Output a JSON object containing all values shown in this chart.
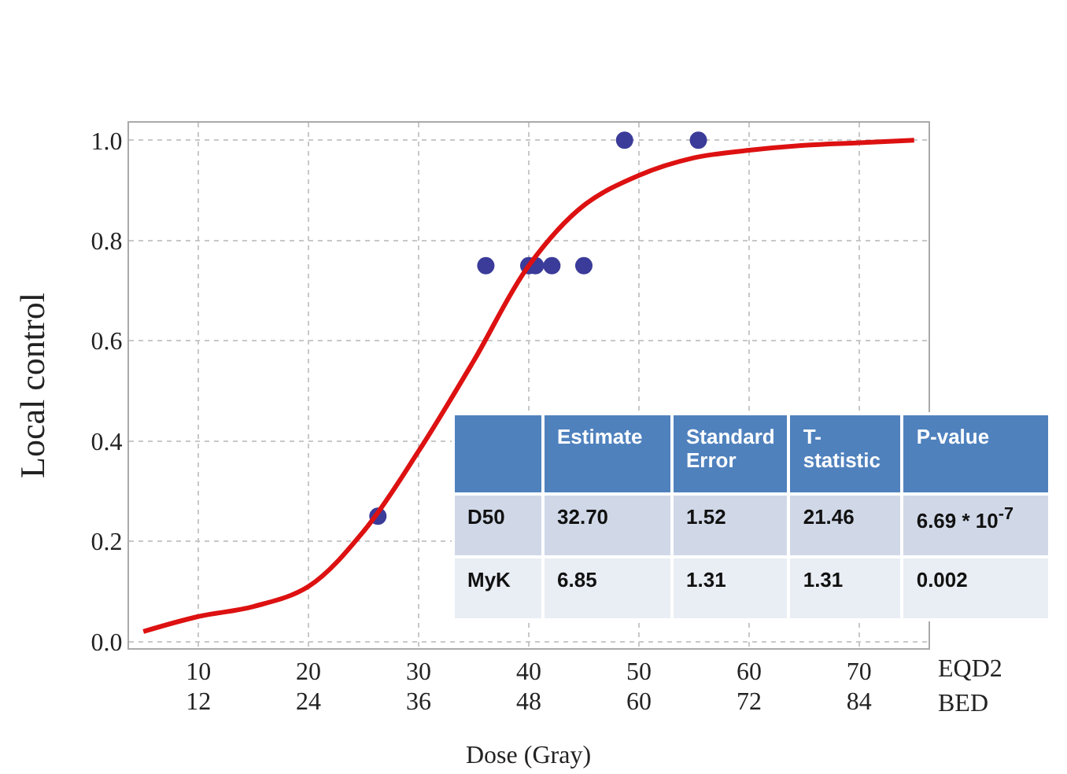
{
  "chart_data": [
    {
      "type": "scatter",
      "xlabel": "Dose (Gray)",
      "ylabel": "Local control",
      "annotations": [
        "EQD2",
        "BED"
      ],
      "xlim": [
        3.7,
        76.3
      ],
      "xticks": [
        10,
        20,
        30,
        40,
        50,
        60,
        70
      ],
      "x2lim": [
        4.44,
        91.56
      ],
      "x2ticks": [
        12,
        24,
        36,
        48,
        60,
        72,
        84
      ],
      "ylim": [
        -0.013,
        1.035
      ],
      "yticks": [
        {
          "value": 0,
          "label": "0.0"
        },
        0.2,
        0.4,
        0.6,
        0.8,
        {
          "value": 1,
          "label": "1.0"
        }
      ],
      "grid": true,
      "marker": "circle",
      "series": [
        {
          "type": "scatter",
          "color": "#3b3b9a",
          "x": [
            26.3,
            36.1,
            40.0,
            40.6,
            42.1,
            45.0,
            48.7,
            55.4
          ],
          "values": [
            0.25,
            0.75,
            0.75,
            0.75,
            0.75,
            0.75,
            1.0,
            1.0
          ]
        },
        {
          "type": "line",
          "color": "#dd1111",
          "marker": "none",
          "line_style": "solid",
          "x": [
            5,
            10,
            15,
            20,
            25,
            30,
            35,
            40,
            45,
            50,
            55,
            60,
            65,
            70,
            75
          ],
          "values": [
            0.02,
            0.05,
            0.07,
            0.11,
            0.22,
            0.38,
            0.56,
            0.75,
            0.87,
            0.93,
            0.965,
            0.98,
            0.99,
            0.995,
            1.0
          ]
        }
      ]
    },
    {
      "type": "other",
      "categories": [
        "Estimate",
        "Standard Error",
        "T-statistic",
        "P-value"
      ],
      "y_categories": [
        "D50",
        "MyK"
      ],
      "cell_labels": [
        [
          "32.70",
          "1.52",
          "21.46",
          "6.69 * 10$^{-7}$"
        ],
        [
          "6.85",
          "1.31",
          "1.31",
          "0.002"
        ]
      ]
    }
  ]
}
